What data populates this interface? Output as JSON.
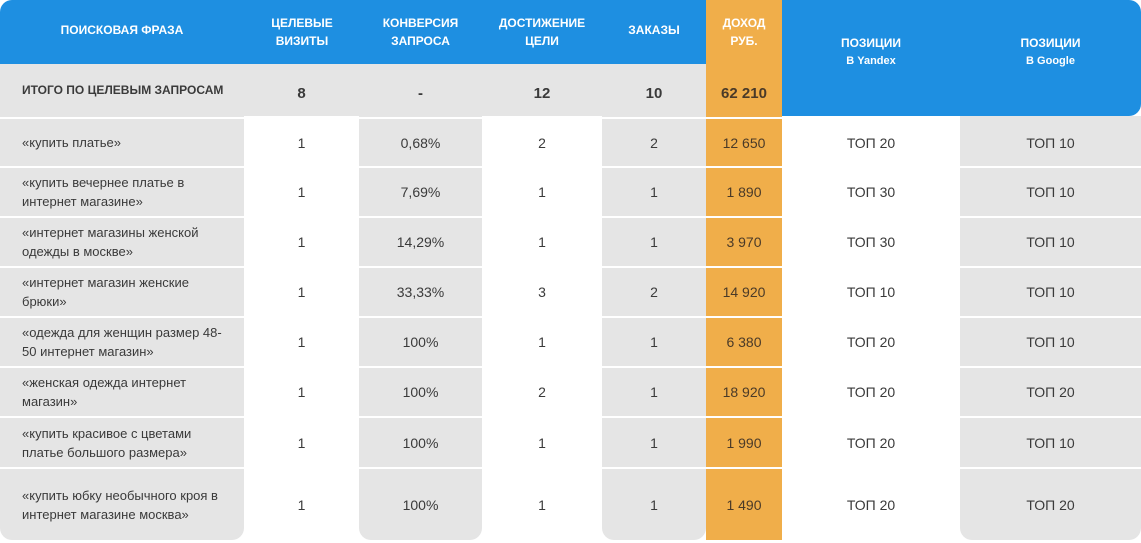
{
  "header": {
    "phrase": "ПОИСКОВАЯ ФРАЗА",
    "visits": "ЦЕЛЕВЫЕ ВИЗИТЫ",
    "conversion": "КОНВЕРСИЯ ЗАПРОСА",
    "goals": "ДОСТИЖЕНИЕ ЦЕЛИ",
    "orders": "ЗАКАЗЫ",
    "income": "ДОХОД",
    "income_unit": "РУБ.",
    "yandex": "ПОЗИЦИИ",
    "yandex_sub": "В Yandex",
    "google": "ПОЗИЦИИ",
    "google_sub": "В Google"
  },
  "total": {
    "label": "ИТОГО ПО ЦЕЛЕВЫМ ЗАПРОСАМ",
    "visits": "8",
    "conversion": "-",
    "goals": "12",
    "orders": "10",
    "income": "62 210"
  },
  "rows": [
    {
      "phrase": "«купить платье»",
      "visits": "1",
      "conversion": "0,68%",
      "goals": "2",
      "orders": "2",
      "income": "12 650",
      "yandex": "ТОП 20",
      "google": "ТОП 10"
    },
    {
      "phrase": "«купить вечернее платье в интернет магазине»",
      "visits": "1",
      "conversion": "7,69%",
      "goals": "1",
      "orders": "1",
      "income": "1 890",
      "yandex": "ТОП 30",
      "google": "ТОП 10"
    },
    {
      "phrase": "«интернет магазины женской одежды в москве»",
      "visits": "1",
      "conversion": "14,29%",
      "goals": "1",
      "orders": "1",
      "income": "3 970",
      "yandex": "ТОП 30",
      "google": "ТОП 10"
    },
    {
      "phrase": "«интернет магазин женские брюки»",
      "visits": "1",
      "conversion": "33,33%",
      "goals": "3",
      "orders": "2",
      "income": "14 920",
      "yandex": "ТОП 10",
      "google": "ТОП 10"
    },
    {
      "phrase": "«одежда для женщин размер 48-50 интернет магазин»",
      "visits": "1",
      "conversion": "100%",
      "goals": "1",
      "orders": "1",
      "income": "6 380",
      "yandex": "ТОП 20",
      "google": "ТОП 10"
    },
    {
      "phrase": "«женская одежда интернет магазин»",
      "visits": "1",
      "conversion": "100%",
      "goals": "2",
      "orders": "1",
      "income": "18 920",
      "yandex": "ТОП 20",
      "google": "ТОП 20"
    },
    {
      "phrase": "«купить красивое с цветами платье большого размера»",
      "visits": "1",
      "conversion": "100%",
      "goals": "1",
      "orders": "1",
      "income": "1 990",
      "yandex": "ТОП 20",
      "google": "ТОП 10"
    },
    {
      "phrase": "«купить юбку необычного кроя в интернет магазине москва»",
      "visits": "1",
      "conversion": "100%",
      "goals": "1",
      "orders": "1",
      "income": "1 490",
      "yandex": "ТОП 20",
      "google": "ТОП 20"
    }
  ]
}
